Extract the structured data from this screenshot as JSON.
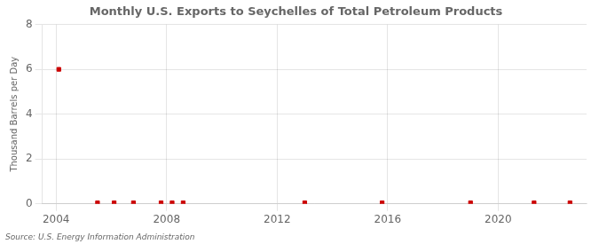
{
  "chart_data": {
    "type": "scatter",
    "title": "Monthly U.S. Exports to Seychelles of Total Petroleum Products",
    "ylabel": "Thousand Barrels per Day",
    "annotation": "Source: U.S. Energy Information Administration",
    "x": [
      2004.1,
      2005.5,
      2006.1,
      2006.8,
      2007.8,
      2008.2,
      2008.6,
      2013.0,
      2015.8,
      2019.0,
      2021.3,
      2022.6
    ],
    "values": [
      6.0,
      0.05,
      0.05,
      0.05,
      0.05,
      0.05,
      0.05,
      0.05,
      0.05,
      0.05,
      0.05,
      0.05
    ],
    "color": "#cc0000",
    "marker": "square",
    "xlim": [
      2003.5,
      2023.2
    ],
    "ylim": [
      0,
      8
    ],
    "xticks": [
      2004,
      2008,
      2012,
      2016,
      2020
    ],
    "yticks": [
      0,
      2,
      4,
      6,
      8
    ],
    "grid": true
  }
}
